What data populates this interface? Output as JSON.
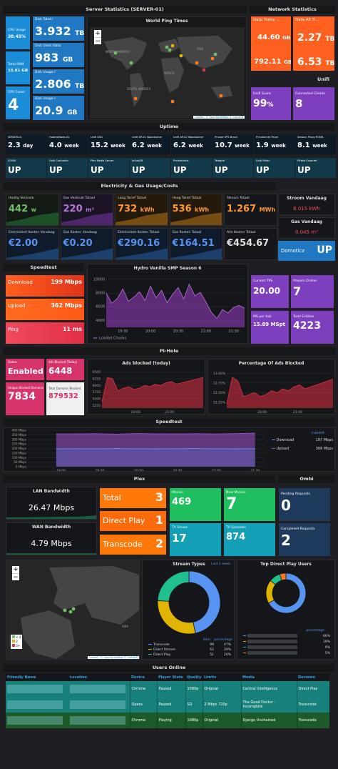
{
  "server": {
    "header": "Server Statistics (SERVER-01)",
    "cpu_usage_label": "CPU Usage",
    "cpu_usage": "38.45%",
    "total_ram_label": "Total RAM",
    "total_ram": "15.61 GB",
    "cpu_cores_label": "CPU Cores",
    "cpu_cores": "4",
    "disk_total_label": "Disk Total /",
    "disk_total": "3.932",
    "disk_total_unit": "TB",
    "disk_used_label": "Disk Used /data",
    "disk_used": "983",
    "disk_used_unit": "GB",
    "disk_usage2_label": "Disk Usage /",
    "disk_usage2": "2.806",
    "disk_usage2_unit": "TB",
    "disk_usage3_label": "Disk Usage /",
    "disk_usage3": "20.9",
    "disk_usage3_unit": "GB"
  },
  "ping": {
    "title": "World Ping Times",
    "zoom_in": "+",
    "zoom_out": "−",
    "attribution": "Leaflet | © OpenStreetMap © CartoDB",
    "labels": [
      "NORTH AMERICA",
      "AFRICA",
      "ASIA",
      "SOUTH AMERICA"
    ]
  },
  "network": {
    "header": "Network Statistics",
    "today_label": "Data Today ...",
    "today_down": "44.60",
    "today_down_unit": "GB",
    "today_up": "792.11",
    "today_up_unit": "GB",
    "all_label": "Data All Ti...",
    "all_down": "2.27",
    "all_down_unit": "TB",
    "all_up": "6.53",
    "all_up_unit": "TB"
  },
  "unifi": {
    "header": "Unifi",
    "score_label": "Unifi Score",
    "score": "99",
    "score_unit": "%",
    "clients_label": "Connected Clients",
    "clients": "8"
  },
  "uptime": {
    "header": "Uptime",
    "row1": [
      {
        "label": "SERVER-01",
        "value": "2.3",
        "unit": "day"
      },
      {
        "label": "HubitatNode-01",
        "value": "4.0",
        "unit": "week"
      },
      {
        "label": "Unifi USG",
        "value": "15.2",
        "unit": "week"
      },
      {
        "label": "Unifi AP-01 Woonkamer",
        "value": "6.2",
        "unit": "week"
      },
      {
        "label": "Unifi AP-02 Woonkamer",
        "value": "6.2",
        "unit": "week"
      },
      {
        "label": "Private VPS Brasil",
        "value": "10.7",
        "unit": "week"
      },
      {
        "label": "Prevedentil Panel",
        "value": "1.9",
        "unit": "week"
      },
      {
        "label": "Session Proxy ROMA",
        "value": "8.1",
        "unit": "week"
      }
    ],
    "row2": [
      {
        "label": "SONIX",
        "value": "UP"
      },
      {
        "label": "Unifi Controller",
        "value": "UP"
      },
      {
        "label": "Plex Media Server",
        "value": "UP"
      },
      {
        "label": "InfluxDB",
        "value": "UP"
      },
      {
        "label": "Prometheus",
        "value": "UP"
      },
      {
        "label": "Telegraf",
        "value": "UP"
      },
      {
        "label": "Unifi Poller",
        "value": "UP"
      },
      {
        "label": "PiHole Exporter",
        "value": "UP"
      }
    ]
  },
  "electricity": {
    "header": "Electricity & Gas Usage/Costs",
    "tiles": [
      {
        "label": "Huidig Verbruik",
        "value": "442",
        "unit": "w"
      },
      {
        "label": "Gas Verbruik Totaal",
        "value": "220",
        "unit": "m³"
      },
      {
        "label": "Laag Tarief Totaal",
        "value": "732",
        "unit": "kWh"
      },
      {
        "label": "Hoog Tarief Totaal",
        "value": "536",
        "unit": "kWh"
      },
      {
        "label": "Stroom Totaal",
        "value": "1.267",
        "unit": "MWh"
      },
      {
        "label": "Elektriciteit Kosten Vandaag",
        "value": "€2.00",
        "unit": ""
      },
      {
        "label": "Gas Kosten Vandaag",
        "value": "€0.20",
        "unit": ""
      },
      {
        "label": "Elektriciteit Kosten Totaal",
        "value": "€290.16",
        "unit": ""
      },
      {
        "label": "Gas Kosten Totaal",
        "value": "€164.51",
        "unit": ""
      },
      {
        "label": "Alle Kosten Totaal",
        "value": "€454.67",
        "unit": ""
      }
    ],
    "stroom_label": "Stroom Vandaag",
    "stroom_value": "8.015 kWh",
    "gas_label": "Gas Vandaag",
    "gas_value": "0.045 m³",
    "domoticz_label": "Domoticz",
    "domoticz_value": "UP"
  },
  "speedtest": {
    "header": "Speedtest",
    "download_label": "Download",
    "download_value": "199 Mbps",
    "upload_label": "Upload",
    "upload_value": "362 Mbps",
    "ping_label": "Ping",
    "ping_value": "11 ms"
  },
  "hydro": {
    "title": "Hydro Vanilla SMP Season 6",
    "legend": "Loaded Chunks",
    "tps_label": "Current TPS",
    "tps": "20.00",
    "players_label": "Players Online",
    "players": "7",
    "ms_label": "MS per tick",
    "ms": "15.89 MSpt",
    "entities_label": "Total Entities",
    "entities": "4223"
  },
  "pihole": {
    "header": "Pi-Hole",
    "status_label": "Status",
    "status": "Enabled",
    "blocked_label": "Ads Blocked (Today)",
    "blocked": "6448",
    "unique_label": "Unique Blocked Domains",
    "unique": "7834",
    "total_label": "Total Domains Blocked",
    "total": "879532",
    "ads_title": "Ads blocked (today)",
    "pct_title": "Percentage Of Ads Blocked"
  },
  "speedtest2": {
    "header": "Speedtest",
    "legend_header": "current",
    "download_label": "Download",
    "download_value": "197 Mbps",
    "upload_label": "Upload",
    "upload_value": "368 Mbps"
  },
  "plex": {
    "header": "Plex",
    "lan_label": "LAN Bandwidth",
    "lan": "26.47 Mbps",
    "wan_label": "WAN Bandwidth",
    "wan": "4.79 Mbps",
    "total_label": "Total",
    "total": "3",
    "direct_label": "Direct Play",
    "direct": "1",
    "transcode_label": "Transcode",
    "transcode": "2",
    "movies_label": "Movies",
    "movies": "469",
    "new_movies_label": "New Movies",
    "new_movies": "7",
    "tv_label": "TV Shows",
    "tv": "17",
    "episodes_label": "TV Episodes",
    "episodes": "874",
    "map_legend": [
      "< 2",
      "2",
      "3+"
    ],
    "map_label": "ASIA",
    "map_attribution": "Leaflet | © OpenStreetMap © CartoDB"
  },
  "ombi": {
    "header": "Ombi",
    "pending_label": "Pending Requests",
    "pending": "0",
    "completed_label": "Completed Requests",
    "completed": "2"
  },
  "streams": {
    "title": "Stream Types",
    "range": "Last 1 week",
    "col_total": "total",
    "col_pct": "percentage",
    "rows": [
      {
        "name": "Transcode",
        "total": "99",
        "pct": "47%",
        "color": "#5794f2"
      },
      {
        "name": "Direct Stream",
        "total": "62",
        "pct": "29%",
        "color": "#e0b400"
      },
      {
        "name": "Direct Play",
        "total": "51",
        "pct": "24%",
        "color": "#1fbf8f"
      }
    ]
  },
  "topusers": {
    "title": "Top Direct Play Users",
    "col_pct": "percentage",
    "pcts": [
      "66%",
      "19%",
      "9%",
      "5%"
    ]
  },
  "users": {
    "header": "Users Online",
    "columns": [
      "Friendly Name",
      "Location",
      "Device",
      "Player State",
      "Quality",
      "Limits",
      "Media",
      "Decision"
    ],
    "rows": [
      {
        "device": "Chrome",
        "state": "Paused",
        "quality": "1080p",
        "limits": "Original",
        "media": "Central Intelligence",
        "decision": "Direct Play"
      },
      {
        "device": "Opera",
        "state": "Paused",
        "quality": "SD",
        "limits": "2 Mbps 720p",
        "media": "The Good Doctor - Incomplete",
        "decision": "Transcode"
      },
      {
        "device": "Chrome",
        "state": "Playing",
        "quality": "1080p",
        "limits": "Original",
        "media": "Django Unchained",
        "decision": "Transcode"
      }
    ]
  },
  "chart_data": [
    {
      "type": "area",
      "title": "Hydro Vanilla SMP Season 6",
      "series": [
        {
          "name": "Loaded Chunks"
        }
      ],
      "x_ticks": [
        "19:30",
        "20:00",
        "20:30",
        "21:00",
        "21:30"
      ],
      "y_ticks": [
        "4000",
        "6000",
        "8000",
        "10000"
      ],
      "ylim": [
        3000,
        10500
      ],
      "x": [
        0,
        0.04,
        0.08,
        0.12,
        0.16,
        0.2,
        0.24,
        0.28,
        0.32,
        0.36,
        0.4,
        0.44,
        0.48,
        0.52,
        0.56,
        0.6,
        0.64,
        0.68,
        0.72,
        0.76,
        0.8,
        0.84,
        0.88,
        0.92,
        0.96,
        1
      ],
      "values": [
        8000,
        6500,
        7200,
        8600,
        6800,
        7400,
        8200,
        6900,
        9000,
        7300,
        8400,
        6600,
        7800,
        8800,
        7100,
        9300,
        7600,
        8100,
        6700,
        5200,
        4300,
        5600,
        5100,
        5900,
        6200,
        5800
      ]
    },
    {
      "type": "area",
      "title": "Ads blocked (today)",
      "x_ticks": [
        "20:00",
        "21:00"
      ],
      "y_ticks": [
        "5250",
        "5500",
        "5750",
        "6000",
        "6250",
        "6500"
      ],
      "ylim": [
        5150,
        6600
      ],
      "values": [
        5400,
        6300,
        6250,
        5800,
        5900,
        5950,
        5850,
        5900,
        6000,
        5950,
        6050,
        6000,
        6100,
        6150,
        6050,
        6100,
        6150,
        6200,
        6250,
        6300
      ]
    },
    {
      "type": "area",
      "title": "Percentage Of Ads Blocked",
      "x_ticks": [
        "20:00",
        "21:00"
      ],
      "y_ticks": [
        "12.25%",
        "12.50%",
        "12.75%",
        "13.00%"
      ],
      "ylim": [
        12.1,
        13.1
      ],
      "values": [
        12.2,
        12.9,
        12.8,
        12.4,
        12.45,
        12.5,
        12.4,
        12.45,
        12.55,
        12.5,
        12.6,
        12.55,
        12.65,
        12.7,
        12.6,
        12.65,
        12.7,
        12.75,
        12.8,
        12.85
      ]
    },
    {
      "type": "line",
      "title": "Speedtest",
      "x_ticks": [
        "19:00",
        "19:30",
        "20:00",
        "20:30",
        "21:00",
        "21:30"
      ],
      "y_ticks": [
        "0 Mbps",
        "50 Mbps",
        "100 Mbps",
        "150 Mbps",
        "200 Mbps",
        "250 Mbps",
        "300 Mbps",
        "350 Mbps",
        "400 Mbps"
      ],
      "ylim": [
        0,
        400
      ],
      "series": [
        {
          "name": "Upload",
          "color": "#a352cc",
          "values": [
            360,
            360,
            362,
            358,
            364,
            361,
            360,
            362,
            359,
            363,
            368
          ]
        },
        {
          "name": "Download",
          "color": "#5794f2",
          "values": [
            195,
            198,
            196,
            199,
            197,
            196,
            198,
            199,
            197,
            196,
            197
          ]
        }
      ]
    },
    {
      "type": "pie",
      "title": "Stream Types",
      "categories": [
        "Transcode",
        "Direct Stream",
        "Direct Play"
      ],
      "values": [
        99,
        62,
        51
      ]
    },
    {
      "type": "pie",
      "title": "Top Direct Play Users",
      "values": [
        66,
        19,
        9,
        5
      ]
    }
  ]
}
